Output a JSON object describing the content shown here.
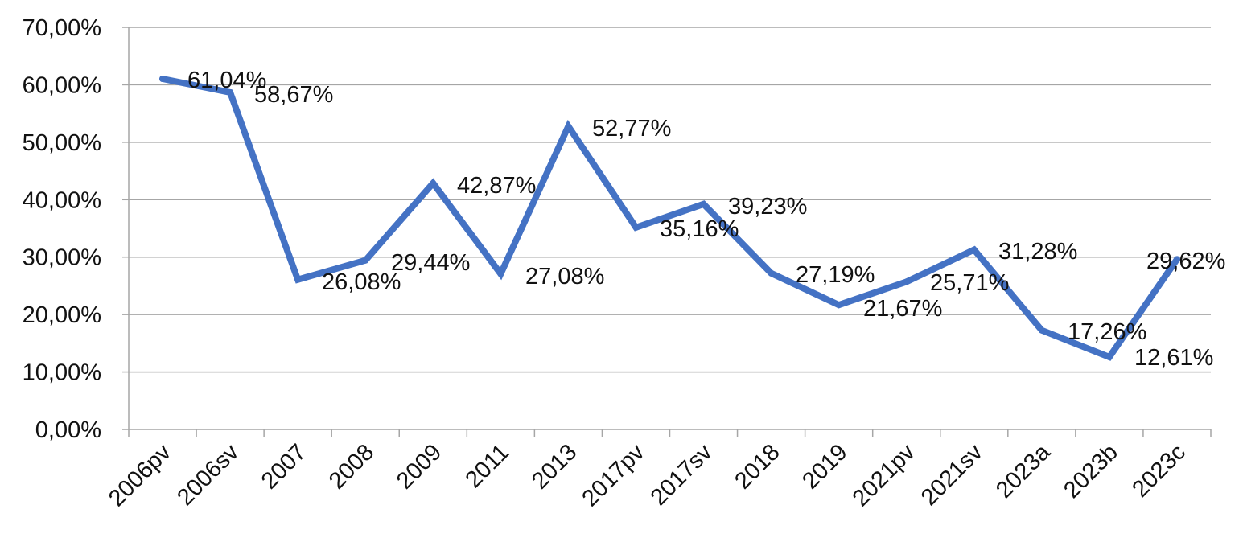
{
  "chart_data": {
    "type": "line",
    "title": "",
    "xlabel": "",
    "ylabel": "",
    "ylim": [
      0,
      70
    ],
    "yticks": [
      "0,00%",
      "10,00%",
      "20,00%",
      "30,00%",
      "40,00%",
      "50,00%",
      "60,00%",
      "70,00%"
    ],
    "grid": true,
    "legend": "none",
    "categories": [
      "2006pv",
      "2006sv",
      "2007",
      "2008",
      "2009",
      "2011",
      "2013",
      "2017pv",
      "2017sv",
      "2018",
      "2019",
      "2021pv",
      "2021sv",
      "2023a",
      "2023b",
      "2023c"
    ],
    "series": [
      {
        "color": "#4472c4",
        "values": [
          61.04,
          58.67,
          26.08,
          29.44,
          42.87,
          27.08,
          52.77,
          35.16,
          39.23,
          27.19,
          21.67,
          25.71,
          31.28,
          17.26,
          12.61,
          29.62
        ],
        "labels": [
          "61,04%",
          "58,67%",
          "26,08%",
          "29,44%",
          "42,87%",
          "27,08%",
          "52,77%",
          "35,16%",
          "39,23%",
          "27,19%",
          "21,67%",
          "25,71%",
          "31,28%",
          "17,26%",
          "12,61%",
          "29,62%"
        ]
      }
    ]
  }
}
